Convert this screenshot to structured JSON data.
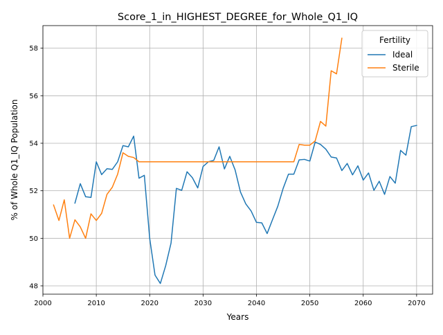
{
  "chart_data": {
    "type": "line",
    "title": "Score_1_in_HIGHEST_DEGREE_for_Whole_Q1_IQ",
    "xlabel": "Years",
    "ylabel": "% of Whole Q1_IQ Population",
    "xlim": [
      2000,
      2073
    ],
    "ylim": [
      47.65,
      58.95
    ],
    "xticks": [
      2000,
      2010,
      2020,
      2030,
      2040,
      2050,
      2060,
      2070
    ],
    "yticks": [
      48,
      50,
      52,
      54,
      56,
      58
    ],
    "grid": true,
    "legend": {
      "title": "Fertility",
      "placement": "top-right"
    },
    "series": [
      {
        "name": "Ideal",
        "color": "#1f77b4",
        "x": [
          2006,
          2007,
          2008,
          2009,
          2010,
          2011,
          2012,
          2013,
          2014,
          2015,
          2016,
          2017,
          2018,
          2019,
          2020,
          2021,
          2022,
          2023,
          2024,
          2025,
          2026,
          2027,
          2028,
          2029,
          2030,
          2031,
          2032,
          2033,
          2034,
          2035,
          2036,
          2037,
          2038,
          2039,
          2040,
          2041,
          2042,
          2043,
          2044,
          2045,
          2046,
          2047,
          2048,
          2049,
          2050,
          2051,
          2052,
          2053,
          2054,
          2055,
          2056,
          2057,
          2058,
          2059,
          2060,
          2061,
          2062,
          2063,
          2064,
          2065,
          2066,
          2067,
          2068,
          2069,
          2070
        ],
        "values": [
          51.48,
          52.3,
          51.75,
          51.72,
          53.22,
          52.68,
          52.93,
          52.9,
          53.22,
          53.9,
          53.85,
          54.3,
          52.53,
          52.65,
          50.0,
          48.45,
          48.1,
          48.85,
          49.8,
          52.1,
          52.02,
          52.8,
          52.55,
          52.12,
          53.02,
          53.22,
          53.28,
          53.85,
          52.92,
          53.45,
          52.88,
          51.95,
          51.45,
          51.15,
          50.67,
          50.65,
          50.2,
          50.78,
          51.35,
          52.1,
          52.7,
          52.7,
          53.3,
          53.32,
          53.25,
          54.05,
          53.95,
          53.75,
          53.42,
          53.38,
          52.85,
          53.15,
          52.67,
          53.05,
          52.45,
          52.75,
          52.02,
          52.4,
          51.85,
          52.6,
          52.32,
          53.7,
          53.5,
          54.7,
          54.75
        ]
      },
      {
        "name": "Sterile",
        "color": "#ff7f0e",
        "x": [
          2002,
          2003,
          2004,
          2005,
          2006,
          2007,
          2008,
          2009,
          2010,
          2011,
          2012,
          2013,
          2014,
          2015,
          2016,
          2017,
          2018,
          2019,
          2020,
          2021,
          2022,
          2023,
          2024,
          2025,
          2026,
          2027,
          2028,
          2029,
          2030,
          2031,
          2032,
          2033,
          2034,
          2035,
          2036,
          2037,
          2038,
          2039,
          2040,
          2041,
          2042,
          2043,
          2044,
          2045,
          2046,
          2047,
          2048,
          2049,
          2050,
          2051,
          2052,
          2053,
          2054,
          2055,
          2056
        ],
        "values": [
          51.4,
          50.75,
          51.62,
          50.0,
          50.78,
          50.48,
          50.0,
          51.03,
          50.75,
          51.05,
          51.85,
          52.15,
          52.7,
          53.6,
          53.45,
          53.4,
          53.22,
          53.22,
          53.22,
          53.22,
          53.22,
          53.22,
          53.22,
          53.22,
          53.22,
          53.22,
          53.22,
          53.22,
          53.22,
          53.22,
          53.22,
          53.22,
          53.22,
          53.22,
          53.22,
          53.22,
          53.22,
          53.22,
          53.22,
          53.22,
          53.22,
          53.22,
          53.22,
          53.22,
          53.22,
          53.22,
          53.95,
          53.92,
          53.92,
          54.1,
          54.92,
          54.72,
          57.05,
          56.92,
          58.42
        ]
      }
    ]
  }
}
